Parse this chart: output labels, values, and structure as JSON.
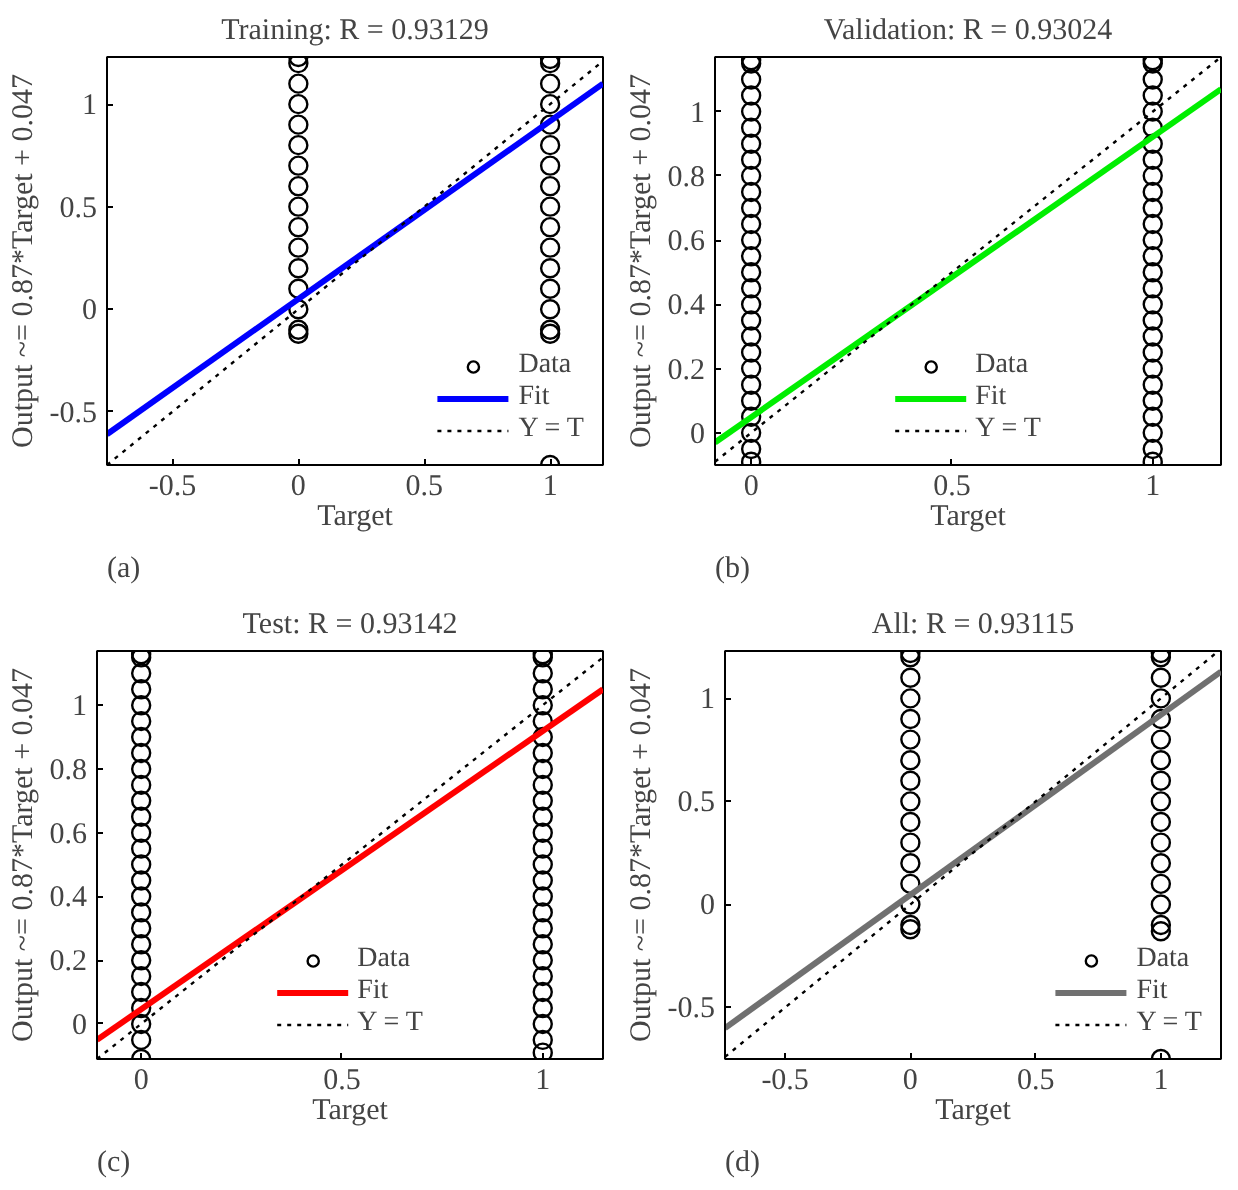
{
  "chart_data": [
    {
      "type": "scatter",
      "title": "Training: R = 0.93129",
      "xlabel": "Target",
      "ylabel": "Output ~= 0.87*Target + 0.047",
      "annotations": [
        "(a)"
      ],
      "xlim": [
        -0.76,
        1.21
      ],
      "ylim": [
        -0.76,
        1.23
      ],
      "xticks": [
        -0.5,
        0,
        0.5,
        1
      ],
      "yticks": [
        -0.5,
        0,
        0.5,
        1
      ],
      "legend": "bottom right",
      "series": [
        {
          "name": "Data",
          "marker": "circle",
          "color": "#000000",
          "x": [
            0,
            0,
            0,
            0,
            0,
            0,
            0,
            0,
            0,
            0,
            0,
            0,
            0,
            0,
            0,
            0,
            1,
            1,
            1,
            1,
            1,
            1,
            1,
            1,
            1,
            1,
            1,
            1,
            1,
            1,
            1,
            1,
            1
          ],
          "values": [
            -0.12,
            -0.1,
            0,
            0.1,
            0.2,
            0.3,
            0.4,
            0.5,
            0.6,
            0.7,
            0.8,
            0.9,
            1,
            1.1,
            1.2,
            1.23,
            -0.76,
            -0.12,
            -0.1,
            0,
            0.1,
            0.2,
            0.3,
            0.4,
            0.5,
            0.6,
            0.7,
            0.8,
            0.9,
            1,
            1.1,
            1.2,
            1.22
          ]
        },
        {
          "name": "Fit",
          "type": "line",
          "color": "#0000ff",
          "line_style": "solid",
          "x": [
            -0.76,
            1.21
          ],
          "values": [
            -0.61,
            1.1
          ]
        },
        {
          "name": "Y = T",
          "type": "line",
          "color": "#000000",
          "line_style": "dotted",
          "x": [
            -0.76,
            1.21
          ],
          "values": [
            -0.76,
            1.21
          ]
        }
      ]
    },
    {
      "type": "scatter",
      "title": "Validation: R = 0.93024",
      "xlabel": "Target",
      "ylabel": "Output ~= 0.87*Target + 0.047",
      "annotations": [
        "(b)"
      ],
      "xlim": [
        -0.09,
        1.17
      ],
      "ylim": [
        -0.1,
        1.17
      ],
      "xticks": [
        0,
        0.5,
        1
      ],
      "yticks": [
        0,
        0.2,
        0.4,
        0.6,
        0.8,
        1
      ],
      "legend": "bottom",
      "series": [
        {
          "name": "Data",
          "marker": "circle",
          "color": "#000000",
          "x": [
            0,
            0,
            0,
            0,
            0,
            0,
            0,
            0,
            0,
            0,
            0,
            0,
            0,
            0,
            0,
            0,
            0,
            0,
            0,
            0,
            0,
            0,
            0,
            0,
            0,
            0,
            0,
            1,
            1,
            1,
            1,
            1,
            1,
            1,
            1,
            1,
            1,
            1,
            1,
            1,
            1,
            1,
            1,
            1,
            1,
            1,
            1,
            1,
            1,
            1,
            1,
            1,
            1,
            1
          ],
          "values": [
            -0.09,
            -0.05,
            0,
            0.05,
            0.1,
            0.15,
            0.2,
            0.25,
            0.3,
            0.35,
            0.4,
            0.45,
            0.5,
            0.55,
            0.6,
            0.65,
            0.7,
            0.75,
            0.8,
            0.85,
            0.9,
            0.95,
            1,
            1.05,
            1.1,
            1.15,
            1.16,
            -0.09,
            -0.05,
            0,
            0.05,
            0.1,
            0.15,
            0.2,
            0.25,
            0.3,
            0.35,
            0.4,
            0.45,
            0.5,
            0.55,
            0.6,
            0.65,
            0.7,
            0.75,
            0.8,
            0.85,
            0.9,
            0.95,
            1,
            1.05,
            1.1,
            1.15,
            1.16
          ]
        },
        {
          "name": "Fit",
          "type": "line",
          "color": "#00ee00",
          "line_style": "solid",
          "x": [
            -0.09,
            1.17
          ],
          "values": [
            -0.03,
            1.07
          ]
        },
        {
          "name": "Y = T",
          "type": "line",
          "color": "#000000",
          "line_style": "dotted",
          "x": [
            -0.09,
            1.17
          ],
          "values": [
            -0.09,
            1.17
          ]
        }
      ]
    },
    {
      "type": "scatter",
      "title": "Test: R = 0.93142",
      "xlabel": "Target",
      "ylabel": "Output ~= 0.87*Target + 0.047",
      "annotations": [
        "(c)"
      ],
      "xlim": [
        -0.11,
        1.15
      ],
      "ylim": [
        -0.11,
        1.17
      ],
      "xticks": [
        0,
        0.5,
        1
      ],
      "yticks": [
        0,
        0.2,
        0.4,
        0.6,
        0.8,
        1
      ],
      "legend": "bottom",
      "series": [
        {
          "name": "Data",
          "marker": "circle",
          "color": "#000000",
          "x": [
            0,
            0,
            0,
            0,
            0,
            0,
            0,
            0,
            0,
            0,
            0,
            0,
            0,
            0,
            0,
            0,
            0,
            0,
            0,
            0,
            0,
            0,
            0,
            0,
            0,
            0,
            0,
            1,
            1,
            1,
            1,
            1,
            1,
            1,
            1,
            1,
            1,
            1,
            1,
            1,
            1,
            1,
            1,
            1,
            1,
            1,
            1,
            1,
            1,
            1,
            1,
            1,
            1,
            1
          ],
          "values": [
            -0.11,
            -0.05,
            0,
            0.05,
            0.1,
            0.15,
            0.2,
            0.25,
            0.3,
            0.35,
            0.4,
            0.45,
            0.5,
            0.55,
            0.6,
            0.65,
            0.7,
            0.75,
            0.8,
            0.85,
            0.9,
            0.95,
            1,
            1.05,
            1.1,
            1.15,
            1.16,
            -0.09,
            -0.05,
            0,
            0.05,
            0.1,
            0.15,
            0.2,
            0.25,
            0.3,
            0.35,
            0.4,
            0.45,
            0.5,
            0.55,
            0.6,
            0.65,
            0.7,
            0.75,
            0.8,
            0.85,
            0.9,
            0.95,
            1,
            1.05,
            1.1,
            1.15,
            1.16
          ]
        },
        {
          "name": "Fit",
          "type": "line",
          "color": "#ff0000",
          "line_style": "solid",
          "x": [
            -0.11,
            1.15
          ],
          "values": [
            -0.05,
            1.05
          ]
        },
        {
          "name": "Y = T",
          "type": "line",
          "color": "#000000",
          "line_style": "dotted",
          "x": [
            -0.11,
            1.15
          ],
          "values": [
            -0.11,
            1.15
          ]
        }
      ]
    },
    {
      "type": "scatter",
      "title": "All: R = 0.93115",
      "xlabel": "Target",
      "ylabel": "Output ~= 0.87*Target + 0.047",
      "annotations": [
        "(d)"
      ],
      "xlim": [
        -0.74,
        1.24
      ],
      "ylim": [
        -0.75,
        1.23
      ],
      "xticks": [
        -0.5,
        0,
        0.5,
        1
      ],
      "yticks": [
        -0.5,
        0,
        0.5,
        1
      ],
      "legend": "bottom right",
      "series": [
        {
          "name": "Data",
          "marker": "circle",
          "color": "#000000",
          "x": [
            0,
            0,
            0,
            0,
            0,
            0,
            0,
            0,
            0,
            0,
            0,
            0,
            0,
            0,
            0,
            0,
            1,
            1,
            1,
            1,
            1,
            1,
            1,
            1,
            1,
            1,
            1,
            1,
            1,
            1,
            1,
            1,
            1
          ],
          "values": [
            -0.12,
            -0.1,
            0,
            0.1,
            0.2,
            0.3,
            0.4,
            0.5,
            0.6,
            0.7,
            0.8,
            0.9,
            1,
            1.1,
            1.2,
            1.22,
            -0.75,
            -0.13,
            -0.1,
            0,
            0.1,
            0.2,
            0.3,
            0.4,
            0.5,
            0.6,
            0.7,
            0.8,
            0.9,
            1,
            1.1,
            1.2,
            1.22
          ]
        },
        {
          "name": "Fit",
          "type": "line",
          "color": "#707070",
          "line_style": "solid",
          "x": [
            -0.74,
            1.24
          ],
          "values": [
            -0.6,
            1.13
          ]
        },
        {
          "name": "Y = T",
          "type": "line",
          "color": "#000000",
          "line_style": "dotted",
          "x": [
            -0.74,
            1.23
          ],
          "values": [
            -0.74,
            1.23
          ]
        }
      ]
    }
  ]
}
